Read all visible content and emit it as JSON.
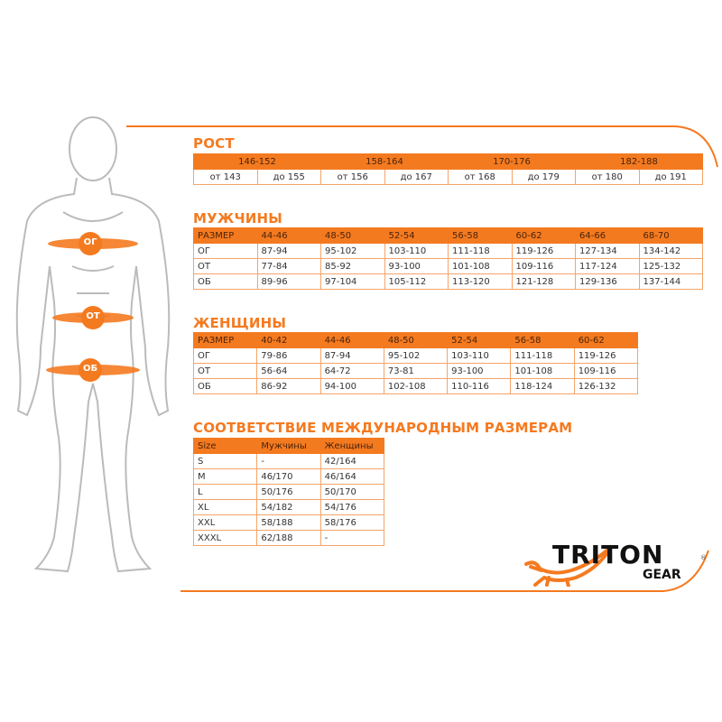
{
  "colors": {
    "accent": "#f47a20",
    "text": "#333333"
  },
  "figure": {
    "labels": [
      "ОГ",
      "ОТ",
      "ОБ"
    ]
  },
  "height": {
    "title": "РОСТ",
    "ranges": [
      "146-152",
      "158-164",
      "170-176",
      "182-188"
    ],
    "bounds": [
      "от 143",
      "до 155",
      "от 156",
      "до 167",
      "от 168",
      "до 179",
      "от 180",
      "до 191"
    ]
  },
  "men": {
    "title": "МУЖЧИНЫ",
    "header": [
      "РАЗМЕР",
      "44-46",
      "48-50",
      "52-54",
      "56-58",
      "60-62",
      "64-66",
      "68-70"
    ],
    "rows": [
      [
        "ОГ",
        "87-94",
        "95-102",
        "103-110",
        "111-118",
        "119-126",
        "127-134",
        "134-142"
      ],
      [
        "ОТ",
        "77-84",
        "85-92",
        "93-100",
        "101-108",
        "109-116",
        "117-124",
        "125-132"
      ],
      [
        "ОБ",
        "89-96",
        "97-104",
        "105-112",
        "113-120",
        "121-128",
        "129-136",
        "137-144"
      ]
    ]
  },
  "women": {
    "title": "ЖЕНЩИНЫ",
    "header": [
      "РАЗМЕР",
      "40-42",
      "44-46",
      "48-50",
      "52-54",
      "56-58",
      "60-62"
    ],
    "rows": [
      [
        "ОГ",
        "79-86",
        "87-94",
        "95-102",
        "103-110",
        "111-118",
        "119-126"
      ],
      [
        "ОТ",
        "56-64",
        "64-72",
        "73-81",
        "93-100",
        "101-108",
        "109-116"
      ],
      [
        "ОБ",
        "86-92",
        "94-100",
        "102-108",
        "110-116",
        "118-124",
        "126-132"
      ]
    ]
  },
  "international": {
    "title": "СООТВЕТСТВИЕ МЕЖДУНАРОДНЫМ РАЗМЕРАМ",
    "header": [
      "Size",
      "Мужчины",
      "Женщины"
    ],
    "rows": [
      [
        "S",
        "-",
        "42/164"
      ],
      [
        "M",
        "46/170",
        "46/164"
      ],
      [
        "L",
        "50/176",
        "50/170"
      ],
      [
        "XL",
        "54/182",
        "54/176"
      ],
      [
        "XXL",
        "58/188",
        "58/176"
      ],
      [
        "XXXL",
        "62/188",
        "-"
      ]
    ]
  },
  "logo": {
    "brand": "TRITON",
    "sub": "GEAR",
    "mark": "®"
  }
}
